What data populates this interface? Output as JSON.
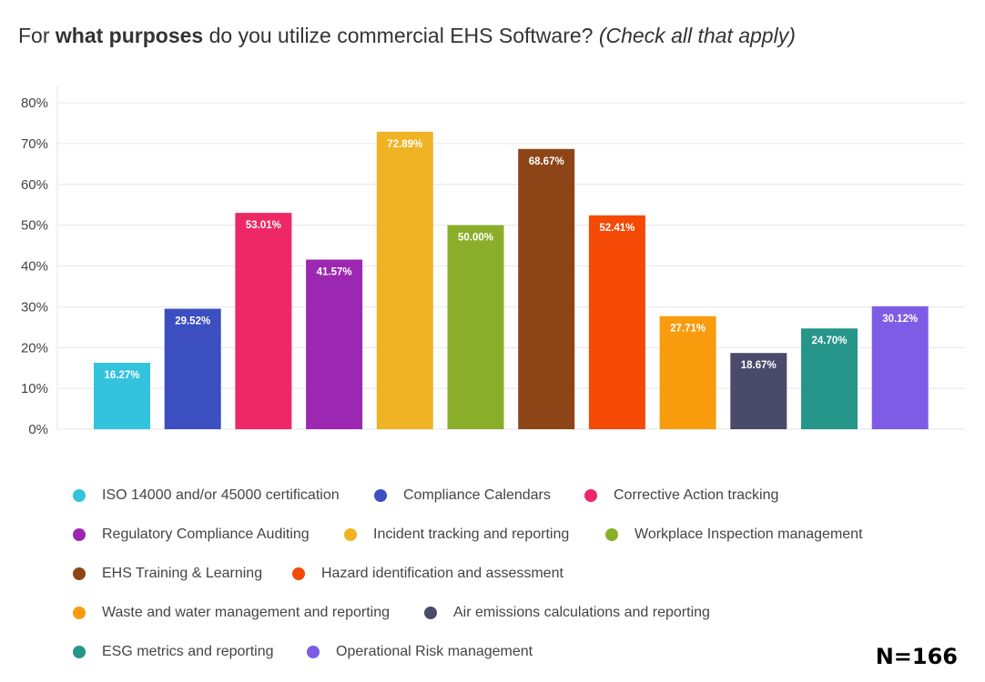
{
  "title": {
    "prefix": "For ",
    "bold": "what purposes",
    "middle": " do you utilize commercial EHS Software? ",
    "italic": "(Check all that apply)"
  },
  "sample_size": "N=166",
  "chart_data": {
    "type": "bar",
    "title": "For what purposes do you utilize commercial EHS Software? (Check all that apply)",
    "ylim": [
      0,
      80
    ],
    "y_ticks": [
      "0%",
      "10%",
      "20%",
      "30%",
      "40%",
      "50%",
      "60%",
      "70%",
      "80%"
    ],
    "grid": true,
    "legend_position": "bottom",
    "categories": [
      "ISO 14000 and/or 45000 certification",
      "Compliance Calendars",
      "Corrective Action tracking",
      "Regulatory Compliance Auditing",
      "Incident tracking and reporting",
      "Workplace Inspection management",
      "EHS Training & Learning",
      "Hazard identification and assessment",
      "Waste and water management and reporting",
      "Air emissions calculations and reporting",
      "ESG metrics and reporting",
      "Operational Risk management"
    ],
    "values": [
      16.27,
      29.52,
      53.01,
      41.57,
      72.89,
      50.0,
      68.67,
      52.41,
      27.71,
      18.67,
      24.7,
      30.12
    ],
    "labels": [
      "16.27%",
      "29.52%",
      "53.01%",
      "41.57%",
      "72.89%",
      "50.00%",
      "68.67%",
      "52.41%",
      "27.71%",
      "18.67%",
      "24.70%",
      "30.12%"
    ],
    "colors": [
      "#33c3dc",
      "#3b4fc1",
      "#ee2866",
      "#9c27b0",
      "#f0b323",
      "#8bae2a",
      "#8d4517",
      "#f44a05",
      "#f89c0e",
      "#4a4a6a",
      "#26958a",
      "#7e5ce6"
    ]
  }
}
